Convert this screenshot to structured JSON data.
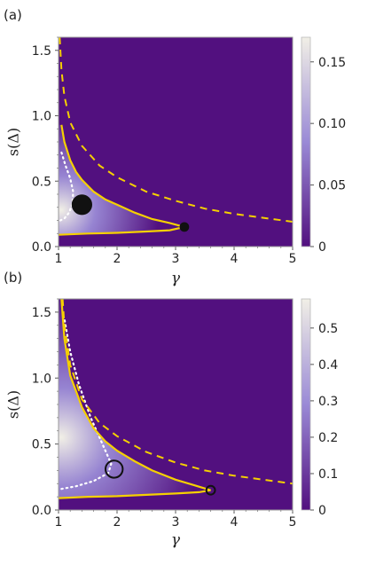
{
  "colors": {
    "background": "#52107f",
    "curve": "#f5d000",
    "boundary": "#ffffff",
    "marker": "#111111",
    "colorbar_low": "#52107f",
    "colorbar_mid": "#9a8ad6",
    "colorbar_high": "#f1efe6"
  },
  "chart_data": [
    {
      "type": "heatmap",
      "panel_label": "(a)",
      "xlabel": "γ",
      "ylabel": "s(Δ)",
      "xlim": [
        1,
        5
      ],
      "ylim": [
        0,
        1.6
      ],
      "xticks": [
        "1",
        "2",
        "3",
        "4",
        "5"
      ],
      "yticks": [
        "0.0",
        "0.5",
        "1.0",
        "1.5"
      ],
      "colorbar": {
        "range": [
          0,
          0.17
        ],
        "ticks": [
          "0",
          "0.05",
          "0.10",
          "0.15"
        ],
        "tick_values": [
          0,
          0.05,
          0.1,
          0.15
        ]
      },
      "solid_upper": [
        [
          1.05,
          0.93
        ],
        [
          1.1,
          0.8
        ],
        [
          1.2,
          0.66
        ],
        [
          1.3,
          0.57
        ],
        [
          1.4,
          0.51
        ],
        [
          1.6,
          0.42
        ],
        [
          1.8,
          0.36
        ],
        [
          2.0,
          0.32
        ],
        [
          2.3,
          0.26
        ],
        [
          2.6,
          0.21
        ],
        [
          2.9,
          0.18
        ],
        [
          3.15,
          0.15
        ]
      ],
      "solid_lower": [
        [
          1.0,
          0.09
        ],
        [
          1.5,
          0.1
        ],
        [
          2.0,
          0.105
        ],
        [
          2.5,
          0.115
        ],
        [
          2.9,
          0.125
        ],
        [
          3.15,
          0.15
        ]
      ],
      "dashed": [
        [
          1.02,
          1.6
        ],
        [
          1.05,
          1.35
        ],
        [
          1.1,
          1.15
        ],
        [
          1.2,
          0.95
        ],
        [
          1.4,
          0.77
        ],
        [
          1.7,
          0.62
        ],
        [
          2.0,
          0.53
        ],
        [
          2.5,
          0.42
        ],
        [
          3.0,
          0.35
        ],
        [
          3.5,
          0.29
        ],
        [
          4.0,
          0.25
        ],
        [
          4.5,
          0.22
        ],
        [
          5.0,
          0.19
        ]
      ],
      "dotted": [
        [
          1.03,
          0.2
        ],
        [
          1.1,
          0.215
        ],
        [
          1.18,
          0.26
        ],
        [
          1.24,
          0.33
        ],
        [
          1.25,
          0.42
        ],
        [
          1.2,
          0.52
        ],
        [
          1.12,
          0.62
        ],
        [
          1.05,
          0.72
        ]
      ],
      "markers": [
        {
          "x": 1.4,
          "y": 0.32,
          "r": 0.075,
          "filled": true
        },
        {
          "x": 3.15,
          "y": 0.15,
          "r": 0.033,
          "filled": true
        }
      ],
      "density_peak": {
        "x": 1.05,
        "y": 0.28,
        "value": 0.17
      }
    },
    {
      "type": "heatmap",
      "panel_label": "(b)",
      "xlabel": "γ",
      "ylabel": "s(Δ)",
      "xlim": [
        1,
        5
      ],
      "ylim": [
        0,
        1.6
      ],
      "xticks": [
        "1",
        "2",
        "3",
        "4",
        "5"
      ],
      "yticks": [
        "0.0",
        "0.5",
        "1.0",
        "1.5"
      ],
      "colorbar": {
        "range": [
          0,
          0.58
        ],
        "ticks": [
          "0",
          "0.1",
          "0.2",
          "0.3",
          "0.4",
          "0.5"
        ],
        "tick_values": [
          0,
          0.1,
          0.2,
          0.3,
          0.4,
          0.5
        ]
      },
      "solid_upper": [
        [
          1.05,
          1.6
        ],
        [
          1.1,
          1.3
        ],
        [
          1.2,
          1.02
        ],
        [
          1.4,
          0.78
        ],
        [
          1.6,
          0.62
        ],
        [
          1.8,
          0.52
        ],
        [
          2.0,
          0.45
        ],
        [
          2.3,
          0.37
        ],
        [
          2.6,
          0.3
        ],
        [
          3.0,
          0.23
        ],
        [
          3.3,
          0.19
        ],
        [
          3.6,
          0.15
        ]
      ],
      "solid_lower": [
        [
          1.0,
          0.09
        ],
        [
          1.5,
          0.1
        ],
        [
          2.0,
          0.105
        ],
        [
          2.5,
          0.115
        ],
        [
          3.0,
          0.125
        ],
        [
          3.4,
          0.135
        ],
        [
          3.6,
          0.15
        ]
      ],
      "dashed": [
        [
          1.07,
          1.6
        ],
        [
          1.1,
          1.4
        ],
        [
          1.2,
          1.1
        ],
        [
          1.4,
          0.84
        ],
        [
          1.7,
          0.66
        ],
        [
          2.0,
          0.56
        ],
        [
          2.5,
          0.44
        ],
        [
          3.0,
          0.36
        ],
        [
          3.5,
          0.3
        ],
        [
          4.0,
          0.26
        ],
        [
          4.5,
          0.23
        ],
        [
          5.0,
          0.2
        ]
      ],
      "dotted": [
        [
          1.05,
          0.16
        ],
        [
          1.3,
          0.18
        ],
        [
          1.6,
          0.22
        ],
        [
          1.85,
          0.28
        ],
        [
          1.9,
          0.35
        ],
        [
          1.75,
          0.5
        ],
        [
          1.55,
          0.7
        ],
        [
          1.35,
          0.95
        ],
        [
          1.2,
          1.2
        ],
        [
          1.1,
          1.45
        ]
      ],
      "markers": [
        {
          "x": 1.95,
          "y": 0.31,
          "r": 0.065,
          "filled": false
        },
        {
          "x": 3.6,
          "y": 0.15,
          "r": 0.033,
          "filled": false
        }
      ],
      "density_peak": {
        "x": 1.05,
        "y": 0.55,
        "value": 0.58
      }
    }
  ]
}
